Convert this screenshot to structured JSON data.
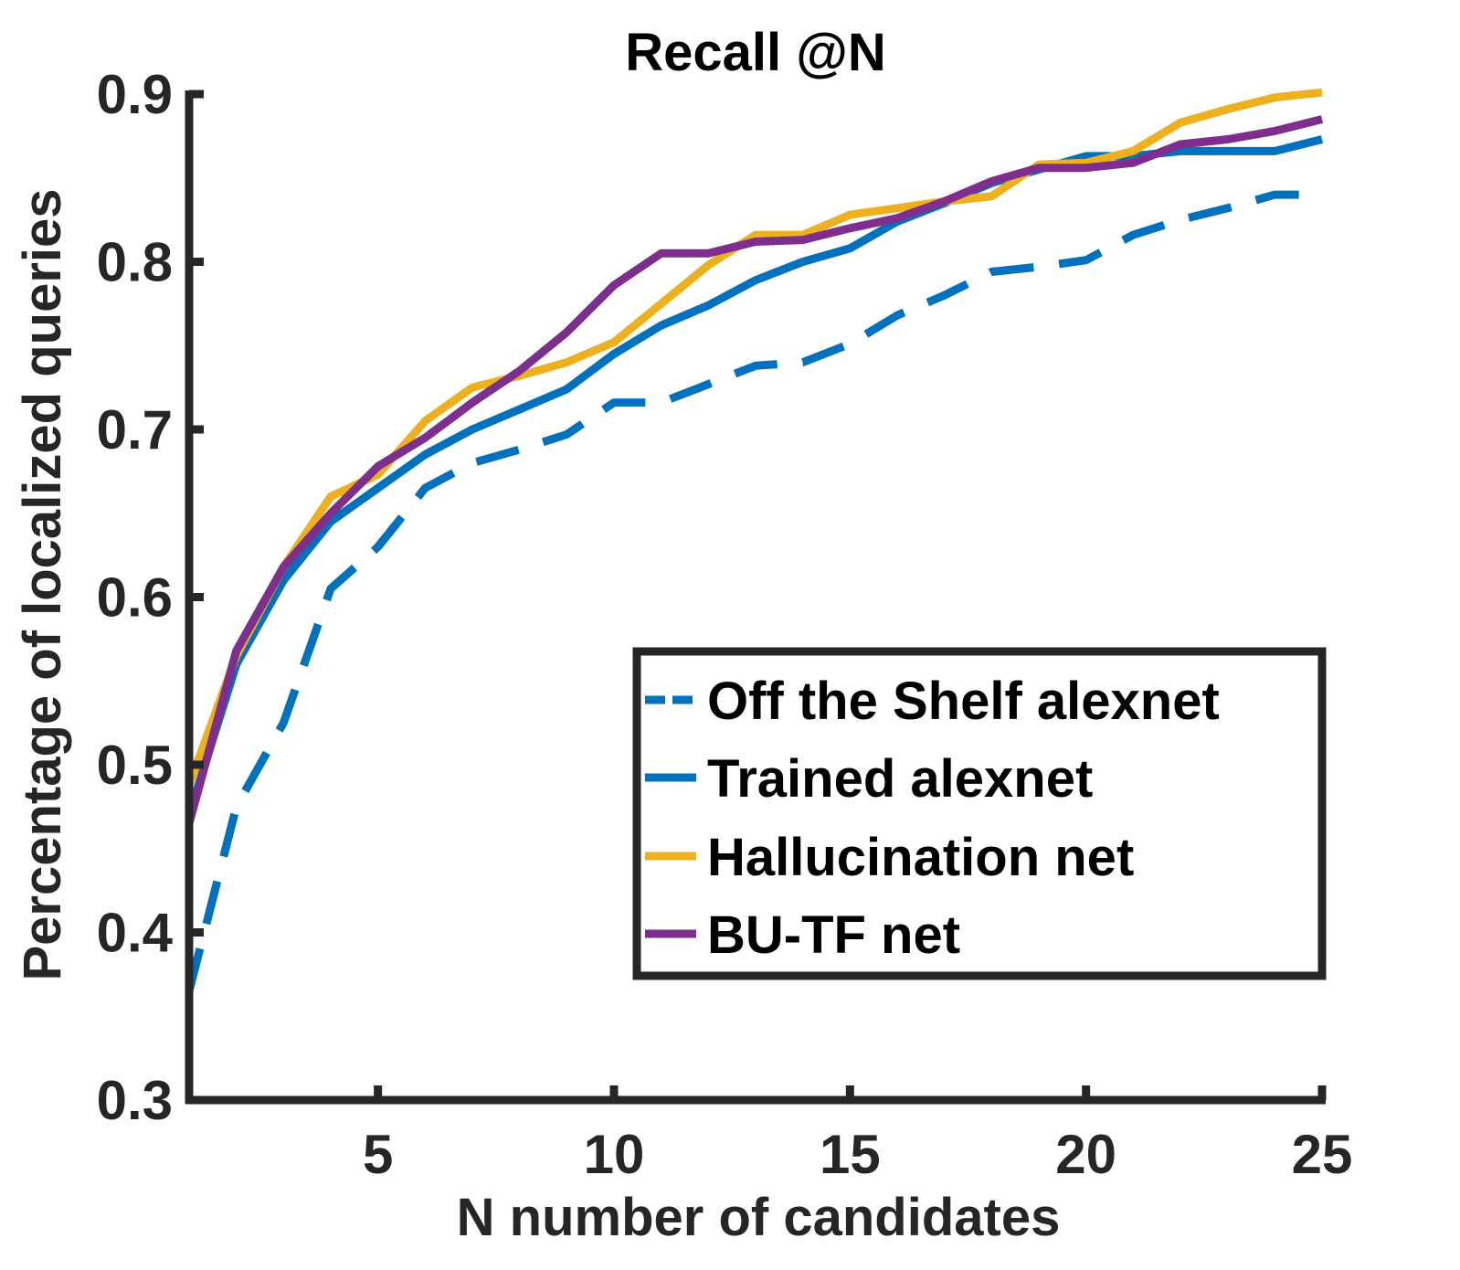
{
  "chart_data": {
    "type": "line",
    "title": "Recall @N",
    "xlabel": "N number of candidates",
    "ylabel": "Percentage of localized queries",
    "xlim": [
      1,
      25
    ],
    "ylim": [
      0.3,
      0.9
    ],
    "xticks": [
      5,
      10,
      15,
      20,
      25
    ],
    "xtick_labels": [
      "5",
      "10",
      "15",
      "20",
      "25"
    ],
    "yticks": [
      0.3,
      0.4,
      0.5,
      0.6,
      0.7,
      0.8,
      0.9
    ],
    "ytick_labels": [
      "0.3",
      "0.4",
      "0.5",
      "0.6",
      "0.7",
      "0.8",
      "0.9"
    ],
    "grid": false,
    "legend_position": "bottom-right",
    "x": [
      1,
      2,
      3,
      4,
      5,
      6,
      7,
      8,
      9,
      10,
      11,
      12,
      13,
      14,
      15,
      16,
      17,
      18,
      19,
      20,
      21,
      22,
      23,
      24,
      25
    ],
    "series": [
      {
        "name": "Off the Shelf alexnet",
        "color": "#0072BD",
        "dash": "dashed",
        "values": [
          0.365,
          0.475,
          0.525,
          0.605,
          0.63,
          0.665,
          0.68,
          0.688,
          0.697,
          0.716,
          0.716,
          0.727,
          0.738,
          0.74,
          0.751,
          0.768,
          0.78,
          0.794,
          0.797,
          0.801,
          0.816,
          0.825,
          0.832,
          0.84,
          0.84
        ]
      },
      {
        "name": "Trained alexnet",
        "color": "#0072BD",
        "dash": "solid",
        "values": [
          0.47,
          0.56,
          0.61,
          0.645,
          0.665,
          0.685,
          0.7,
          0.712,
          0.724,
          0.745,
          0.762,
          0.774,
          0.789,
          0.8,
          0.808,
          0.824,
          0.835,
          0.847,
          0.855,
          0.863,
          0.863,
          0.866,
          0.866,
          0.866,
          0.873
        ]
      },
      {
        "name": "Hallucination net",
        "color": "#EDB120",
        "dash": "solid",
        "values": [
          0.488,
          0.565,
          0.618,
          0.66,
          0.673,
          0.705,
          0.725,
          0.732,
          0.74,
          0.752,
          0.775,
          0.798,
          0.816,
          0.816,
          0.828,
          0.832,
          0.836,
          0.839,
          0.858,
          0.859,
          0.866,
          0.883,
          0.891,
          0.898,
          0.901
        ]
      },
      {
        "name": "BU-TF net",
        "color": "#7E2F8E",
        "dash": "solid",
        "values": [
          0.465,
          0.568,
          0.618,
          0.65,
          0.678,
          0.695,
          0.716,
          0.735,
          0.758,
          0.786,
          0.805,
          0.805,
          0.812,
          0.813,
          0.82,
          0.826,
          0.836,
          0.848,
          0.856,
          0.856,
          0.859,
          0.87,
          0.873,
          0.878,
          0.885
        ]
      }
    ]
  }
}
